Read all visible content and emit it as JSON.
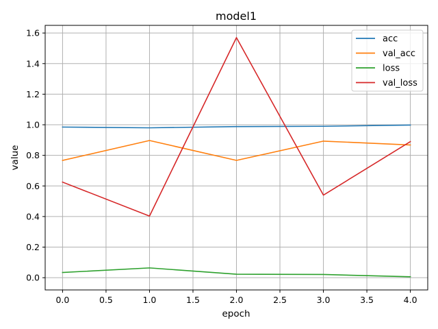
{
  "chart_data": {
    "type": "line",
    "title": "model1",
    "xlabel": "epoch",
    "ylabel": "value",
    "x": [
      0,
      1,
      2,
      3,
      4
    ],
    "xlim": [
      -0.2,
      4.2
    ],
    "ylim": [
      -0.08,
      1.65
    ],
    "xticks": [
      0.0,
      0.5,
      1.0,
      1.5,
      2.0,
      2.5,
      3.0,
      3.5,
      4.0
    ],
    "xtick_labels": [
      "0.0",
      "0.5",
      "1.0",
      "1.5",
      "2.0",
      "2.5",
      "3.0",
      "3.5",
      "4.0"
    ],
    "yticks": [
      0.0,
      0.2,
      0.4,
      0.6,
      0.8,
      1.0,
      1.2,
      1.4,
      1.6
    ],
    "ytick_labels": [
      "0.0",
      "0.2",
      "0.4",
      "0.6",
      "0.8",
      "1.0",
      "1.2",
      "1.4",
      "1.6"
    ],
    "grid": true,
    "legend_position": "top-right",
    "series": [
      {
        "name": "acc",
        "color": "#1f77b4",
        "values": [
          0.985,
          0.98,
          0.988,
          0.99,
          0.998
        ]
      },
      {
        "name": "val_acc",
        "color": "#ff7f0e",
        "values": [
          0.767,
          0.897,
          0.767,
          0.893,
          0.868
        ]
      },
      {
        "name": "loss",
        "color": "#2ca02c",
        "values": [
          0.034,
          0.064,
          0.023,
          0.021,
          0.006
        ]
      },
      {
        "name": "val_loss",
        "color": "#d62728",
        "values": [
          0.625,
          0.403,
          1.57,
          0.54,
          0.89
        ]
      }
    ]
  }
}
